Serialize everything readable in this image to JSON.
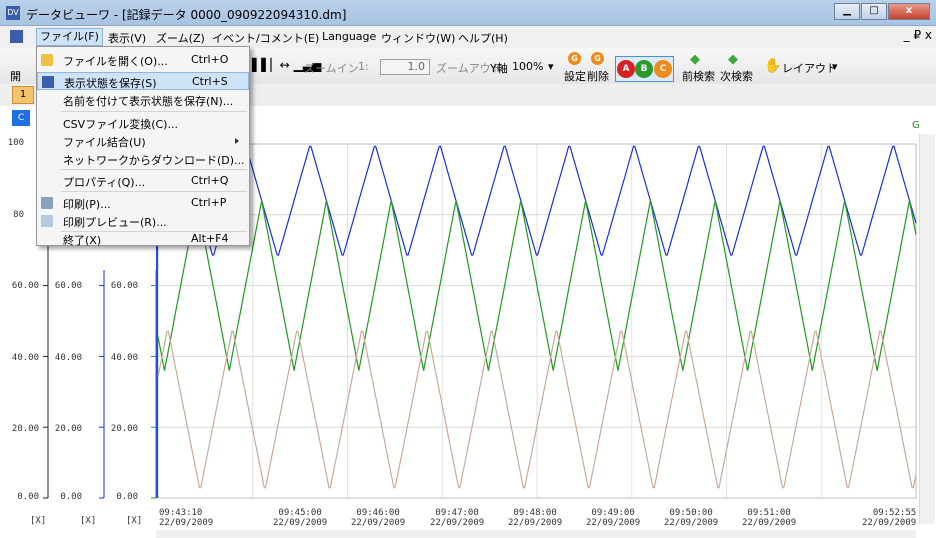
{
  "window": {
    "title": "データビューワ - [記録データ 0000_090922094310.dm]",
    "buttons": [
      "▁",
      "□",
      "x"
    ]
  },
  "menubar": {
    "items": [
      "ファイル(F)",
      "表示(V)",
      "ズーム(Z)",
      "イベント/コメント(E)",
      "Language",
      "ウィンドウ(W)",
      "ヘルプ(H)"
    ],
    "mdi_controls": "_ ₽ x"
  },
  "toolbar": {
    "open_label": "開",
    "zoom_in": "ズームイン",
    "zoom_prefix": "1:",
    "zoom_value": "1.0",
    "zoom_out": "ズームアウト",
    "y_axis": "Y軸",
    "y_percent": "100%",
    "settings": "設定",
    "delete": "削除",
    "prev_search": "前検索",
    "next_search": "次検索",
    "layout": "レイアウト",
    "abm": [
      "A",
      "B",
      "C"
    ]
  },
  "tab": {
    "label": "1"
  },
  "chip": {
    "label": "C"
  },
  "file_menu": {
    "items": [
      {
        "label": "ファイルを開く(O)...",
        "shortcut": "Ctrl+O"
      },
      {
        "label": "表示状態を保存(S)",
        "shortcut": "Ctrl+S"
      },
      {
        "label": "名前を付けて表示状態を保存(N)...",
        "shortcut": ""
      },
      {
        "label": "CSVファイル変換(C)...",
        "shortcut": ""
      },
      {
        "label": "ファイル結合(U)",
        "shortcut": ""
      },
      {
        "label": "ネットワークからダウンロード(D)...",
        "shortcut": ""
      },
      {
        "label": "プロパティ(Q)...",
        "shortcut": "Ctrl+Q"
      },
      {
        "label": "印刷(P)...",
        "shortcut": "Ctrl+P"
      },
      {
        "label": "印刷プレビュー(R)...",
        "shortcut": ""
      },
      {
        "label": "終了(X)",
        "shortcut": "Alt+F4"
      }
    ]
  },
  "chart_data": {
    "type": "line",
    "y_ticks": [
      "100",
      "80",
      "60.00",
      "40.00",
      "20.00",
      "0.00"
    ],
    "y_ticks_axis2": [
      "60.00",
      "40.00",
      "20.00",
      "0.00"
    ],
    "y_ticks_axis3": [
      "60.00",
      "40.00",
      "20.00",
      "0.00"
    ],
    "units": [
      "[X]",
      "[X]",
      "[X]"
    ],
    "time_labels": [
      {
        "time": "09:43:10",
        "date": "22/09/2009"
      },
      {
        "time": "09:45:00",
        "date": "22/09/2009"
      },
      {
        "time": "09:46:00",
        "date": "22/09/2009"
      },
      {
        "time": "09:47:00",
        "date": "22/09/2009"
      },
      {
        "time": "09:48:00",
        "date": "22/09/2009"
      },
      {
        "time": "09:49:00",
        "date": "22/09/2009"
      },
      {
        "time": "09:50:00",
        "date": "22/09/2009"
      },
      {
        "time": "09:51:00",
        "date": "22/09/2009"
      },
      {
        "time": "09:52:55",
        "date": "22/09/2009"
      }
    ],
    "ylim": [
      0,
      100
    ],
    "series": [
      {
        "color": "#1a2fd8",
        "y_min": 68,
        "y_max": 100,
        "period": "50s"
      },
      {
        "color": "#1f9b1f",
        "y_min": 36,
        "y_max": 84,
        "period": "50s"
      },
      {
        "color": "#c8ab96",
        "y_min": 2,
        "y_max": 48,
        "period": "50s"
      }
    ],
    "grid": true
  }
}
